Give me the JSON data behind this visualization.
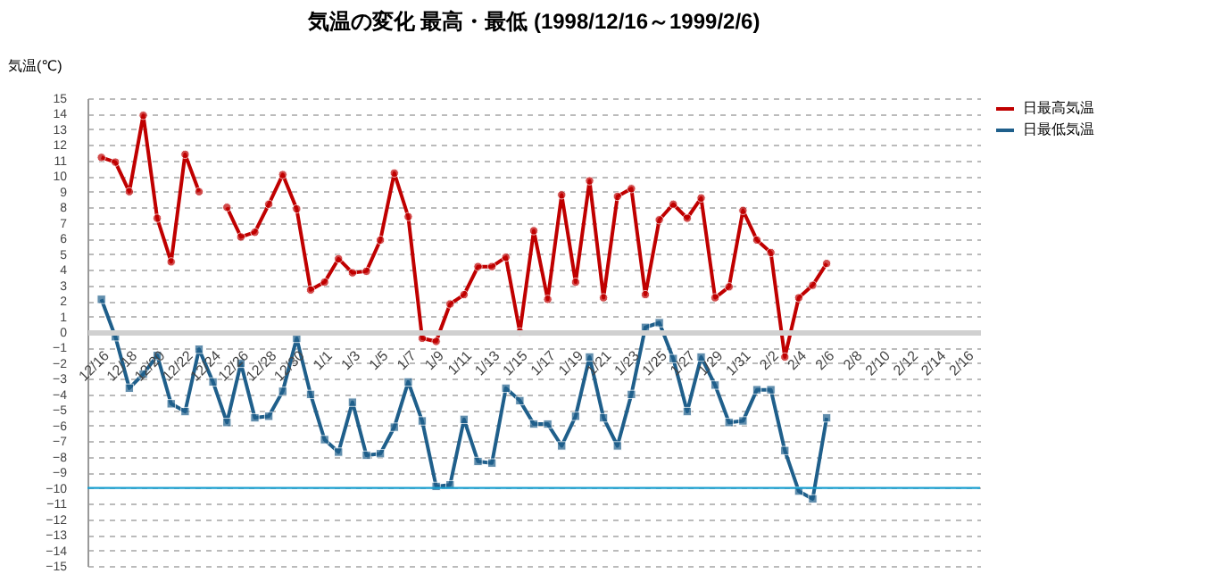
{
  "chart_data": {
    "type": "line",
    "title": "気温の変化  最高・最低  (1998/12/16～1999/2/6)",
    "ylabel": "気温(℃)",
    "categories": [
      "12/16",
      null,
      "12/18",
      null,
      "12/20",
      null,
      "12/22",
      null,
      "12/24",
      null,
      "12/26",
      null,
      "12/28",
      null,
      "12/30",
      null,
      "1/1",
      null,
      "1/3",
      null,
      "1/5",
      null,
      "1/7",
      null,
      "1/9",
      null,
      "1/11",
      null,
      "1/13",
      null,
      "1/15",
      null,
      "1/17",
      null,
      "1/19",
      null,
      "1/21",
      null,
      "1/23",
      null,
      "1/25",
      null,
      "1/27",
      null,
      "1/29",
      null,
      "1/31",
      null,
      "2/2",
      null,
      "2/4",
      null,
      "2/6",
      null,
      "2/8",
      null,
      "2/10",
      null,
      "2/12",
      null,
      "2/14",
      null,
      "2/16"
    ],
    "series": [
      {
        "name": "日最高気温",
        "color": "#c00000",
        "marker": "circle",
        "values": [
          11.2,
          10.9,
          9.0,
          13.9,
          7.3,
          4.5,
          11.4,
          9.0,
          null,
          8.0,
          6.1,
          6.4,
          8.2,
          10.1,
          7.9,
          2.7,
          3.2,
          4.7,
          3.8,
          3.9,
          5.9,
          10.2,
          7.4,
          -0.4,
          -0.6,
          1.8,
          2.4,
          4.2,
          4.2,
          4.8,
          0.0,
          6.5,
          2.1,
          8.8,
          3.2,
          9.7,
          2.2,
          8.7,
          9.2,
          2.4,
          7.2,
          8.2,
          7.3,
          8.6,
          2.2,
          2.9,
          7.8,
          5.9,
          5.1,
          -1.6,
          2.2,
          3.0,
          4.4,
          null,
          null,
          null,
          null,
          null,
          null,
          null,
          null,
          null,
          null
        ]
      },
      {
        "name": "日最低気温",
        "color": "#1f5f8b",
        "marker": "square",
        "values": [
          2.1,
          -0.3,
          -3.6,
          -2.7,
          -1.5,
          -4.6,
          -5.1,
          -1.1,
          -3.2,
          -5.8,
          -2.0,
          -5.5,
          -5.4,
          -3.8,
          -0.4,
          -4.0,
          -6.9,
          -7.7,
          -4.5,
          -7.9,
          -7.8,
          -6.1,
          -3.2,
          -5.7,
          -9.9,
          -9.8,
          -5.6,
          -8.3,
          -8.4,
          -3.6,
          -4.4,
          -5.9,
          -5.9,
          -7.3,
          -5.4,
          -1.6,
          -5.5,
          -7.3,
          -4.0,
          0.3,
          0.6,
          -1.7,
          -5.1,
          -1.6,
          -3.4,
          -5.8,
          -5.7,
          -3.7,
          -3.7,
          -7.6,
          -10.2,
          -10.7,
          -5.5,
          null,
          null,
          null,
          null,
          null,
          null,
          null,
          null,
          null,
          null
        ]
      }
    ],
    "ylim": [
      -15,
      15
    ],
    "yticks": [
      -15,
      -14,
      -13,
      -12,
      -11,
      -10,
      -9,
      -8,
      -7,
      -6,
      -5,
      -4,
      -3,
      -2,
      -1,
      0,
      1,
      2,
      3,
      4,
      5,
      6,
      7,
      8,
      9,
      10,
      11,
      12,
      13,
      14,
      15
    ],
    "grid": "y",
    "legend": "right",
    "ref_lines": [
      {
        "axis": "y",
        "value": -10,
        "color": "#1a9fd0"
      }
    ]
  }
}
